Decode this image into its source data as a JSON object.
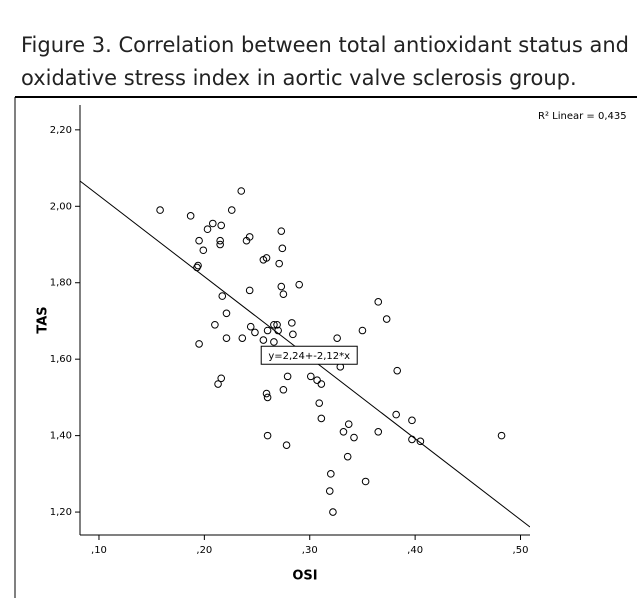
{
  "chart_data": {
    "type": "scatter",
    "title": "Figure 3.  Correlation between total antioxidant status and oxidative stress index in aortic valve sclerosis group.",
    "x_label": "OSI",
    "y_label": "TAS",
    "r2_label": "R² Linear = 0,435",
    "fit_label": "y=2,24+-2,12*x",
    "fit": {
      "intercept": 2.24,
      "slope": -2.12
    },
    "color": "#000000",
    "xlim": [
      0.082,
      0.509
    ],
    "ylim": [
      1.14,
      2.265
    ],
    "xticks": [
      {
        "value": 0.1,
        "label": ",10"
      },
      {
        "value": 0.2,
        "label": ",20"
      },
      {
        "value": 0.3,
        "label": ",30"
      },
      {
        "value": 0.4,
        "label": ",40"
      },
      {
        "value": 0.5,
        "label": ",50"
      }
    ],
    "yticks": [
      {
        "value": 1.2,
        "label": "1,20"
      },
      {
        "value": 1.4,
        "label": "1,40"
      },
      {
        "value": 1.6,
        "label": "1,60"
      },
      {
        "value": 1.8,
        "label": "1,80"
      },
      {
        "value": 2.0,
        "label": "2,00"
      },
      {
        "value": 2.2,
        "label": "2,20"
      }
    ],
    "x": [
      0.158,
      0.187,
      0.195,
      0.199,
      0.203,
      0.208,
      0.216,
      0.215,
      0.215,
      0.226,
      0.235,
      0.243,
      0.24,
      0.194,
      0.193,
      0.273,
      0.256,
      0.259,
      0.271,
      0.274,
      0.273,
      0.29,
      0.243,
      0.275,
      0.217,
      0.21,
      0.221,
      0.244,
      0.248,
      0.256,
      0.26,
      0.266,
      0.269,
      0.27,
      0.283,
      0.284,
      0.266,
      0.236,
      0.221,
      0.195,
      0.326,
      0.35,
      0.365,
      0.373,
      0.329,
      0.301,
      0.307,
      0.311,
      0.279,
      0.216,
      0.213,
      0.275,
      0.259,
      0.26,
      0.309,
      0.311,
      0.383,
      0.382,
      0.397,
      0.337,
      0.332,
      0.342,
      0.365,
      0.397,
      0.405,
      0.482,
      0.26,
      0.278,
      0.336,
      0.32,
      0.319,
      0.353,
      0.322
    ],
    "values": [
      1.99,
      1.975,
      1.91,
      1.885,
      1.94,
      1.955,
      1.95,
      1.91,
      1.9,
      1.99,
      2.04,
      1.92,
      1.91,
      1.845,
      1.84,
      1.935,
      1.86,
      1.865,
      1.85,
      1.89,
      1.79,
      1.795,
      1.78,
      1.77,
      1.765,
      1.69,
      1.72,
      1.685,
      1.67,
      1.65,
      1.675,
      1.69,
      1.69,
      1.675,
      1.695,
      1.665,
      1.645,
      1.655,
      1.655,
      1.64,
      1.655,
      1.675,
      1.75,
      1.705,
      1.58,
      1.555,
      1.545,
      1.535,
      1.555,
      1.55,
      1.535,
      1.52,
      1.51,
      1.5,
      1.485,
      1.445,
      1.57,
      1.455,
      1.44,
      1.43,
      1.41,
      1.395,
      1.41,
      1.39,
      1.385,
      1.4,
      1.4,
      1.375,
      1.345,
      1.3,
      1.255,
      1.28,
      1.2
    ]
  }
}
